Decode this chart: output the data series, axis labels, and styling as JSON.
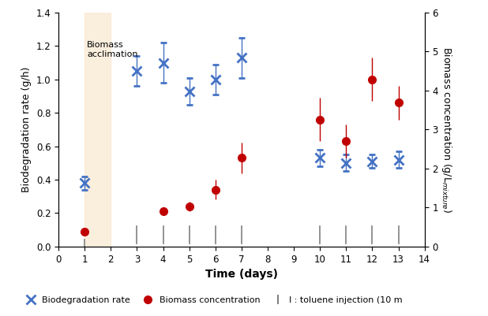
{
  "title": "",
  "xlabel": "Time (days)",
  "ylabel_left": "Biodegradation rate (g/h)",
  "ylabel_right": "Biomass concentration (g/L",
  "xlim": [
    0,
    14
  ],
  "ylim_left": [
    0,
    1.4
  ],
  "ylim_right": [
    0,
    6
  ],
  "acclimation_xmin": 1,
  "acclimation_xmax": 2,
  "acclimation_color": "#FAEBD7",
  "acclimation_alpha": 0.85,
  "acclimation_label": "Biomass\nacclimation",
  "biodeg_x": [
    1,
    3,
    4,
    5,
    6,
    7,
    10,
    11,
    12,
    13
  ],
  "biodeg_y": [
    0.38,
    1.05,
    1.1,
    0.93,
    1.0,
    1.13,
    0.53,
    0.5,
    0.51,
    0.52
  ],
  "biodeg_yerr": [
    0.04,
    0.09,
    0.12,
    0.08,
    0.09,
    0.12,
    0.05,
    0.05,
    0.04,
    0.05
  ],
  "biomass_x": [
    1,
    4,
    5,
    6,
    7,
    10,
    11,
    12,
    13
  ],
  "biomass_y": [
    0.09,
    0.21,
    0.24,
    0.34,
    0.53,
    0.76,
    0.63,
    1.0,
    0.86
  ],
  "biomass_yerr": [
    0.01,
    0.02,
    0.03,
    0.06,
    0.09,
    0.13,
    0.1,
    0.13,
    0.1
  ],
  "toluene_x": [
    3,
    4,
    5,
    6,
    7,
    10,
    11,
    12,
    13
  ],
  "toluene_y_center": 0.07,
  "toluene_half_height": 0.05,
  "biodeg_color": "#4472C4",
  "biomass_color": "#C00000",
  "toluene_color": "#808080",
  "legend_biodeg": "Biodegradation rate",
  "legend_biomass": "Biomass concentration",
  "legend_toluene": "I : toluene injection (10 m"
}
